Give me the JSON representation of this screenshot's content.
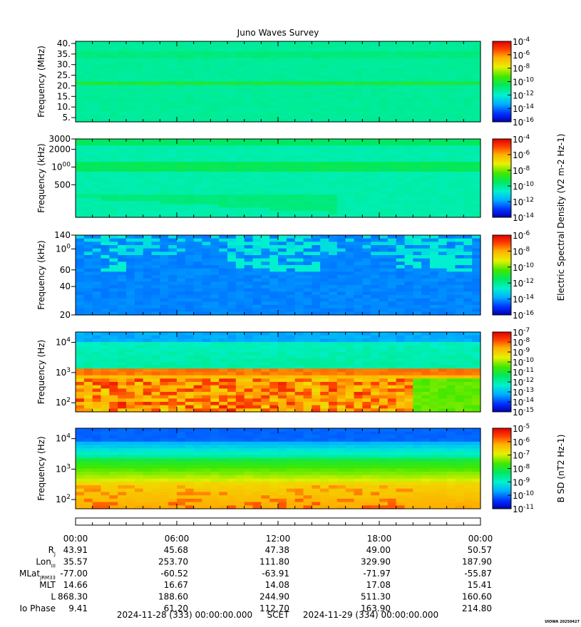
{
  "chart_data": {
    "type": "heatmap",
    "title": "Juno Waves Survey",
    "watermark": "UIOWA 20250427",
    "panels": [
      {
        "id": "mhz",
        "ylabel": "Frequency (MHz)",
        "yscale": "linear",
        "ylim": [
          3,
          41
        ],
        "yticks": [
          "40.",
          "35.",
          "30.",
          "25.",
          "20.",
          "15.",
          "10.",
          "5."
        ],
        "ytick_values": [
          40,
          35,
          30,
          25,
          20,
          15,
          10,
          5
        ],
        "cbar_ticks": [
          "10-4",
          "10-6",
          "10-8",
          "10-10",
          "10-12",
          "10-14",
          "10-16"
        ],
        "cbar_range": [
          -16,
          -4
        ],
        "cbar_label": ""
      },
      {
        "id": "khz-high",
        "ylabel": "Frequency (kHz)",
        "yscale": "log",
        "ylim": [
          140,
          3000
        ],
        "yticks": [
          "3000",
          "2000",
          "1000",
          "500"
        ],
        "ytick_values": [
          3000,
          2000,
          1000,
          500
        ],
        "cbar_ticks": [
          "10-4",
          "10-6",
          "10-8",
          "10-10",
          "10-12",
          "10-14"
        ],
        "cbar_range": [
          -14,
          -4
        ],
        "cbar_label": "Electric Spectral Density (V2 m-2 Hz-1)"
      },
      {
        "id": "khz-low",
        "ylabel": "Frequency (kHz)",
        "yscale": "log",
        "ylim": [
          20,
          140
        ],
        "yticks": [
          "140",
          "100",
          "60",
          "40",
          "20"
        ],
        "ytick_values": [
          140,
          100,
          60,
          40,
          20
        ],
        "cbar_ticks": [
          "10-6",
          "10-8",
          "10-10",
          "10-12",
          "10-14",
          "10-16"
        ],
        "cbar_range": [
          -16,
          -6
        ],
        "cbar_label": ""
      },
      {
        "id": "hz-e",
        "ylabel": "Frequency (Hz)",
        "yscale": "log",
        "ylim": [
          50,
          22000
        ],
        "yticks": [
          "104",
          "103",
          "102"
        ],
        "ytick_values": [
          10000,
          1000,
          100
        ],
        "cbar_ticks": [
          "10-7",
          "10-8",
          "10-9",
          "10-10",
          "10-11",
          "10-12",
          "10-13",
          "10-14",
          "10-15"
        ],
        "cbar_range": [
          -15,
          -7
        ],
        "cbar_label": ""
      },
      {
        "id": "hz-b",
        "ylabel": "Frequency (Hz)",
        "yscale": "log",
        "ylim": [
          50,
          22000
        ],
        "yticks": [
          "104",
          "103",
          "102"
        ],
        "ytick_values": [
          10000,
          1000,
          100
        ],
        "cbar_ticks": [
          "10-5",
          "10-6",
          "10-7",
          "10-8",
          "10-9",
          "10-10",
          "10-11"
        ],
        "cbar_range": [
          -11,
          -5
        ],
        "cbar_label": "B SD (nT2 Hz-1)"
      }
    ],
    "xlim_hours": [
      0,
      24
    ],
    "x_tick_labels": [
      "00:00",
      "06:00",
      "12:00",
      "18:00",
      "00:00"
    ],
    "x_tick_hours": [
      0,
      6,
      12,
      18,
      24
    ],
    "ephemeris": [
      {
        "label": "R",
        "sub": "J",
        "values": [
          "43.91",
          "45.68",
          "47.38",
          "49.00",
          "50.57"
        ]
      },
      {
        "label": "Lon",
        "sub": "III",
        "values": [
          "35.57",
          "253.70",
          "111.80",
          "329.90",
          "187.90"
        ]
      },
      {
        "label": "MLat",
        "sub": "JRM33",
        "values": [
          "-77.00",
          "-60.52",
          "-63.91",
          "-71.97",
          "-55.87"
        ]
      },
      {
        "label": "MLT",
        "sub": "",
        "values": [
          "14.66",
          "16.67",
          "14.08",
          "17.08",
          "15.41"
        ]
      },
      {
        "label": "L",
        "sub": "",
        "values": [
          "868.30",
          "188.60",
          "244.90",
          "511.30",
          "160.60"
        ]
      },
      {
        "label": "Io Phase",
        "sub": "",
        "values": [
          "9.41",
          "61.20",
          "112.70",
          "163.90",
          "214.80"
        ]
      }
    ],
    "footer_start": "2024-11-28 (333) 00:00:00.000",
    "footer_label": "SCET",
    "footer_end": "2024-11-29 (334) 00:00:00.000"
  }
}
